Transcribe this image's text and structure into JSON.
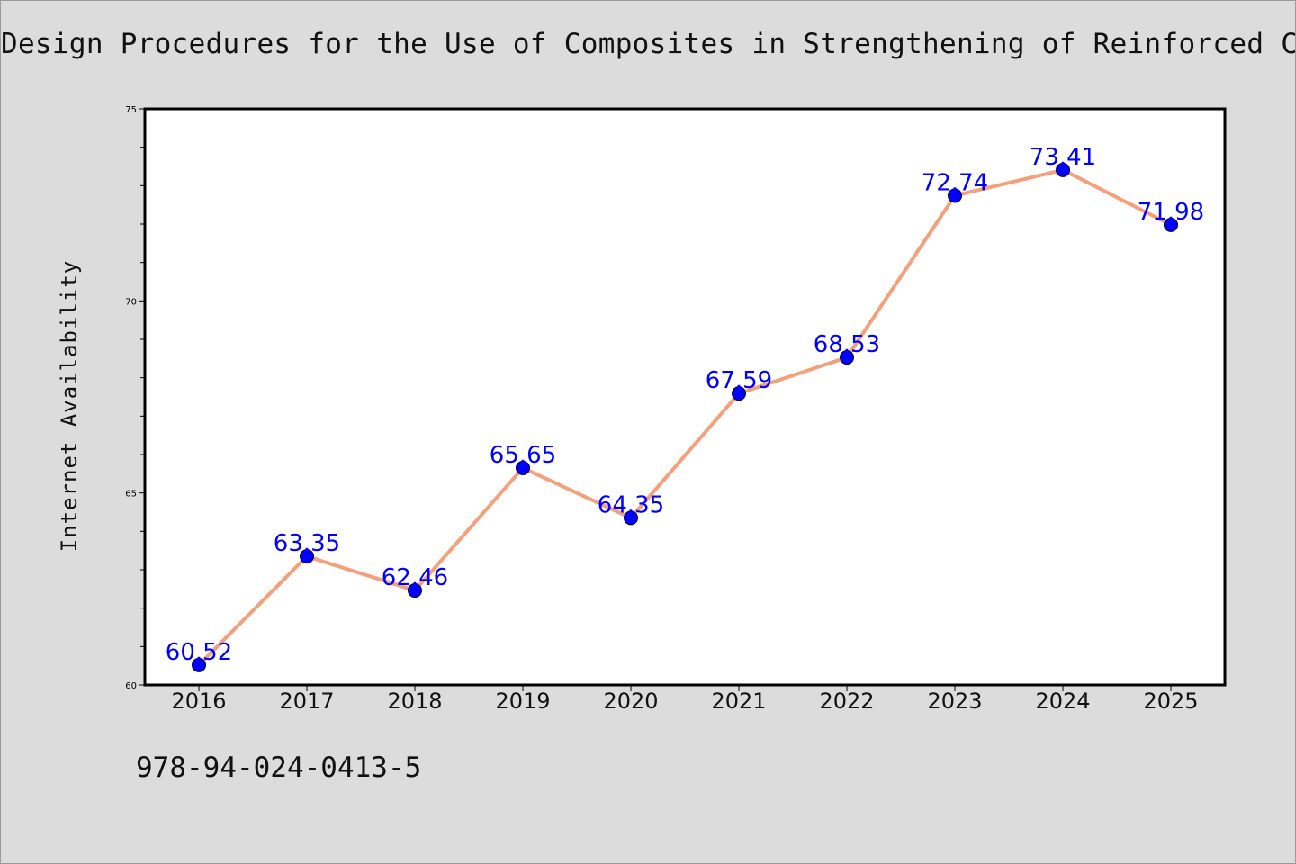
{
  "title": "Design Procedures for the Use of Composites in Strengthening of Reinforced Concr",
  "footer_text": "978-94-024-0413-5",
  "colors": {
    "background": "#dcdcdc",
    "plot_background": "#ffffff",
    "line": "#f4a07a",
    "marker": "#0000ff",
    "data_label": "#0000ff"
  },
  "chart_data": {
    "type": "line",
    "title": "Design Procedures for the Use of Composites in Strengthening of Reinforced Concr",
    "xlabel": "",
    "ylabel": "Internet Availability",
    "categories": [
      "2016",
      "2017",
      "2018",
      "2019",
      "2020",
      "2021",
      "2022",
      "2023",
      "2024",
      "2025"
    ],
    "values": [
      60.52,
      63.35,
      62.46,
      65.65,
      64.35,
      67.59,
      68.53,
      72.74,
      73.41,
      71.98
    ],
    "data_labels": [
      "60.52",
      "63.35",
      "62.46",
      "65.65",
      "64.35",
      "67.59",
      "68.53",
      "72.74",
      "73.41",
      "71.98"
    ],
    "ylim": [
      60,
      75
    ],
    "yticks": [
      "60",
      "65",
      "70",
      "75"
    ],
    "grid": false,
    "legend": "none"
  }
}
